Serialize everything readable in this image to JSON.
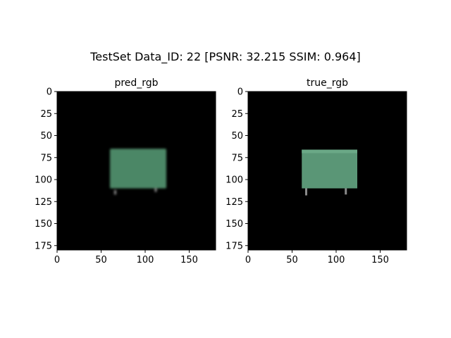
{
  "figure": {
    "suptitle": "TestSet  Data_ID: 22 [PSNR: 32.215 SSIM: 0.964]",
    "background": "#ffffff"
  },
  "chart_data": [
    {
      "type": "image",
      "title": "pred_rgb",
      "xlim": [
        0,
        180
      ],
      "ylim": [
        180,
        0
      ],
      "xticks": [
        0,
        50,
        100,
        150
      ],
      "yticks": [
        0,
        25,
        50,
        75,
        100,
        125,
        150,
        175
      ],
      "background": "#000000",
      "object": {
        "kind": "green box (blurred reconstruction)",
        "color": "#4f8c6a",
        "x_range": [
          60,
          124
        ],
        "y_range": [
          65,
          110
        ],
        "legs": [
          [
            66,
            112,
            117
          ],
          [
            112,
            110,
            114
          ]
        ]
      }
    },
    {
      "type": "image",
      "title": "true_rgb",
      "xlim": [
        0,
        180
      ],
      "ylim": [
        180,
        0
      ],
      "xticks": [
        0,
        50,
        100,
        150
      ],
      "yticks": [
        0,
        25,
        50,
        75,
        100,
        125,
        150,
        175
      ],
      "background": "#000000",
      "object": {
        "kind": "green box (ground truth)",
        "color": "#5a9676",
        "x_range": [
          61,
          124
        ],
        "y_range": [
          66,
          110
        ],
        "legs": [
          [
            66,
            110,
            118
          ],
          [
            111,
            110,
            117
          ]
        ]
      }
    }
  ]
}
